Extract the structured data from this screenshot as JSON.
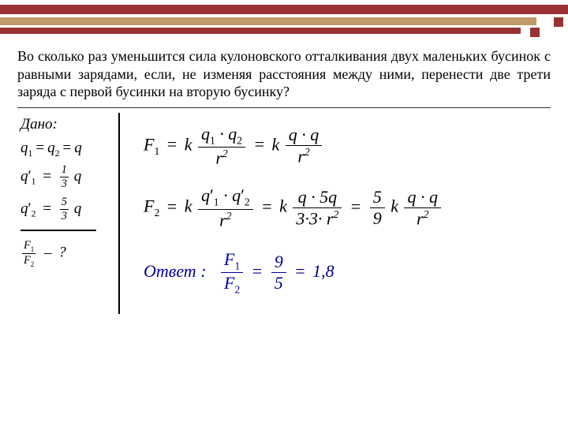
{
  "banner": {
    "bar1_color": "#993333",
    "bar2_color": "#c19a6b",
    "bar3_color": "#993333",
    "sq_color": "#993333"
  },
  "problem_text": "Во сколько раз уменьшится сила кулоновского отталкивания двух маленьких бусинок с равными зарядами, если, не изменяя расстояния между ними, перенести две трети заряда с первой бусинки на вторую бусинку?",
  "given": {
    "label": "Дано:",
    "equal_q": "q",
    "q1": "q",
    "sub1": "1",
    "q2": "q",
    "sub2": "2",
    "q1p_num": "1",
    "q1p_den": "3",
    "q2p_num": "5",
    "q2p_den": "3",
    "target": "?"
  },
  "formulas": {
    "k": "k",
    "F1": "F",
    "F1_sub": "1",
    "F2": "F",
    "F2_sub": "2",
    "q1": "q",
    "q1_sub": "1",
    "q2": "q",
    "q2_sub": "2",
    "q": "q",
    "r": "r",
    "r_exp": "2",
    "five": "5",
    "nine": "9",
    "three": "3"
  },
  "answer": {
    "label": "Ответ",
    "colon": ":",
    "num": "9",
    "den": "5",
    "val": "1,8"
  },
  "styling": {
    "page_bg": "#ffffff",
    "text_color": "#000000",
    "accent_color": "#000099",
    "font_family": "Times New Roman"
  }
}
